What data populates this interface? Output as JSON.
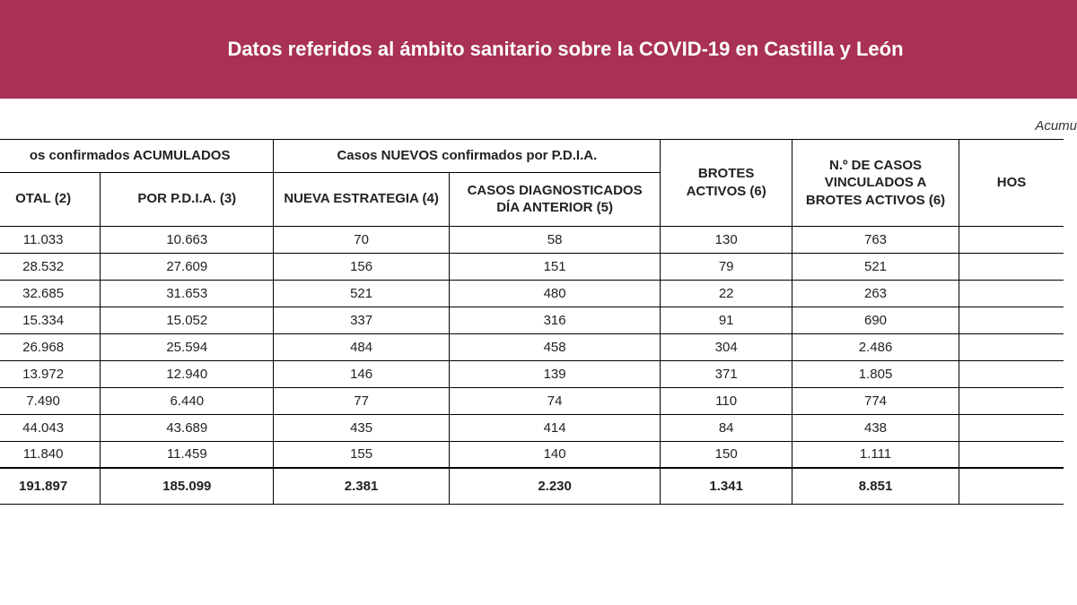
{
  "header": {
    "title": "Datos referidos al ámbito sanitario sobre la COVID-19 en Castilla y León",
    "subtitle_partial": "Acumu"
  },
  "table": {
    "group_headers": {
      "confirmados": "os confirmados ACUMULADOS",
      "nuevos": "Casos NUEVOS confirmados por P.D.I.A."
    },
    "columns": {
      "total": "OTAL (2)",
      "pdia": "POR P.D.I.A. (3)",
      "nueva_estrategia": "NUEVA ESTRATEGIA (4)",
      "diagnosticados": "CASOS DIAGNOSTICADOS DÍA ANTERIOR (5)",
      "brotes_activos": "BROTES ACTIVOS (6)",
      "vinculados": "N.º DE CASOS VINCULADOS A BROTES ACTIVOS (6)",
      "hosp": "HOS"
    },
    "rows": [
      {
        "total": "11.033",
        "pdia": "10.663",
        "nueva": "70",
        "diag": "58",
        "brotes": "130",
        "vincul": "763"
      },
      {
        "total": "28.532",
        "pdia": "27.609",
        "nueva": "156",
        "diag": "151",
        "brotes": "79",
        "vincul": "521"
      },
      {
        "total": "32.685",
        "pdia": "31.653",
        "nueva": "521",
        "diag": "480",
        "brotes": "22",
        "vincul": "263"
      },
      {
        "total": "15.334",
        "pdia": "15.052",
        "nueva": "337",
        "diag": "316",
        "brotes": "91",
        "vincul": "690"
      },
      {
        "total": "26.968",
        "pdia": "25.594",
        "nueva": "484",
        "diag": "458",
        "brotes": "304",
        "vincul": "2.486"
      },
      {
        "total": "13.972",
        "pdia": "12.940",
        "nueva": "146",
        "diag": "139",
        "brotes": "371",
        "vincul": "1.805"
      },
      {
        "total": "7.490",
        "pdia": "6.440",
        "nueva": "77",
        "diag": "74",
        "brotes": "110",
        "vincul": "774"
      },
      {
        "total": "44.043",
        "pdia": "43.689",
        "nueva": "435",
        "diag": "414",
        "brotes": "84",
        "vincul": "438"
      },
      {
        "total": "11.840",
        "pdia": "11.459",
        "nueva": "155",
        "diag": "140",
        "brotes": "150",
        "vincul": "1.111"
      }
    ],
    "totals": {
      "total": "191.897",
      "pdia": "185.099",
      "nueva": "2.381",
      "diag": "2.230",
      "brotes": "1.341",
      "vincul": "8.851"
    }
  },
  "style": {
    "title_bg": "#a93154",
    "title_color": "#ffffff",
    "border_color": "#000000",
    "text_color": "#222222"
  }
}
